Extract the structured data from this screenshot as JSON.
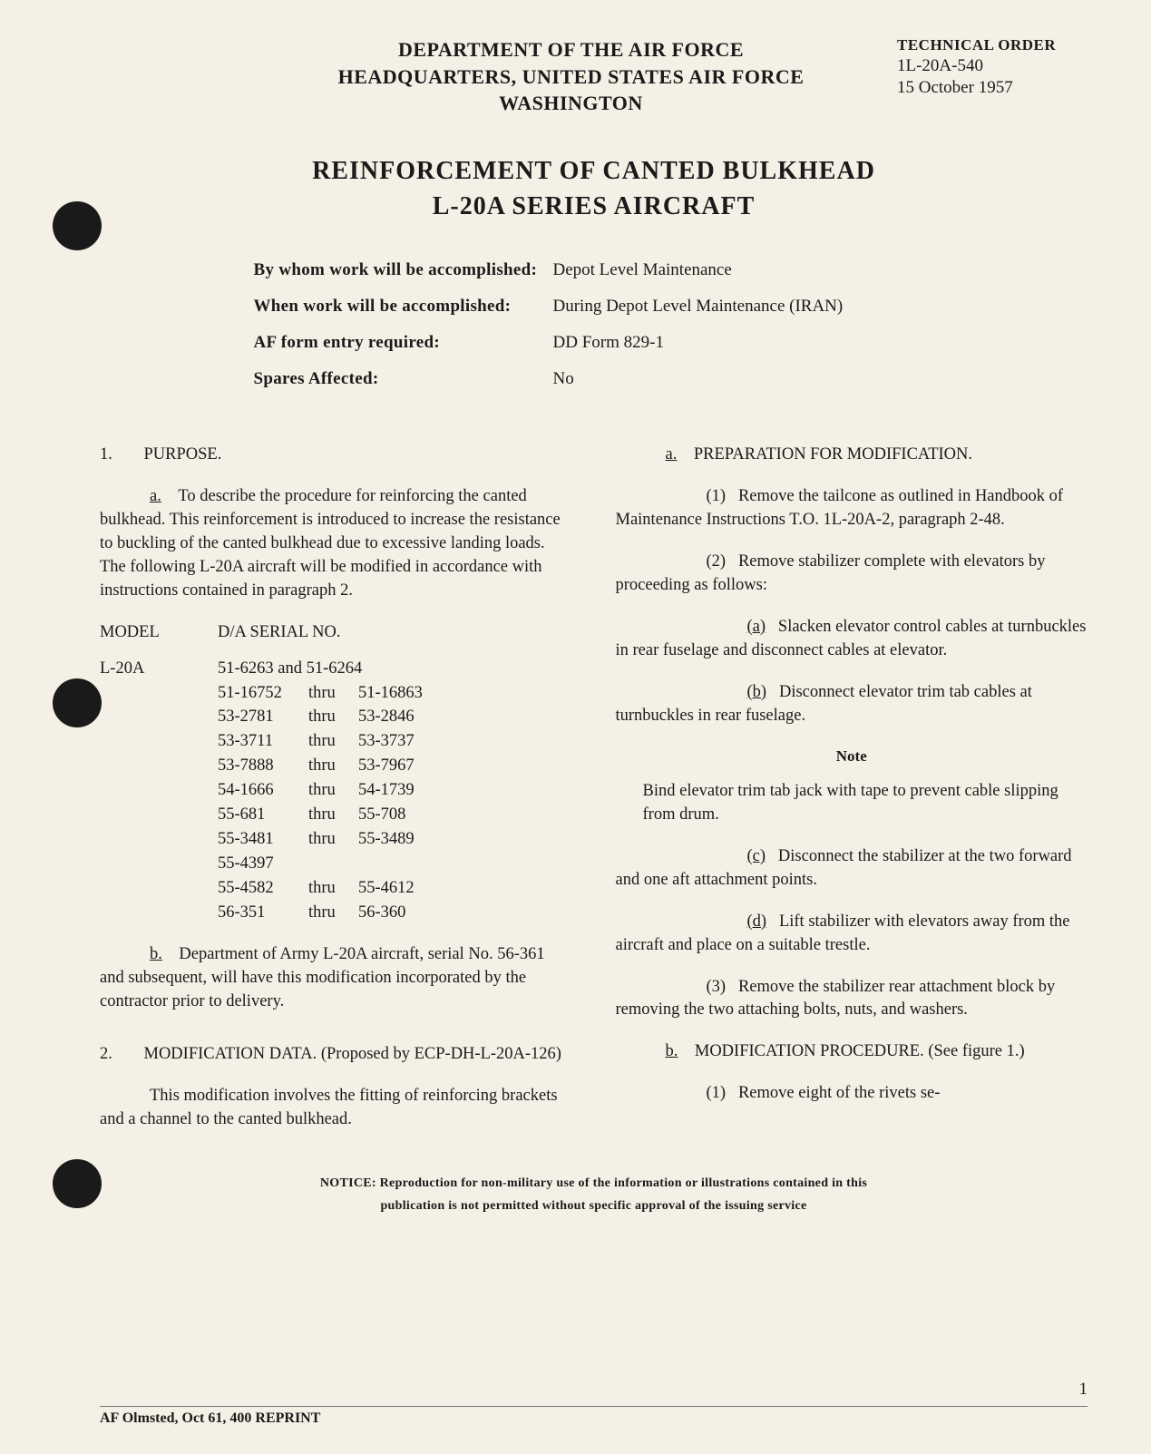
{
  "header": {
    "dept1": "DEPARTMENT OF THE AIR FORCE",
    "dept2": "HEADQUARTERS, UNITED STATES AIR FORCE",
    "dept3": "WASHINGTON",
    "order_label": "TECHNICAL ORDER",
    "order_num": "1L-20A-540",
    "date": "15 October 1957"
  },
  "title": {
    "line1": "REINFORCEMENT OF CANTED BULKHEAD",
    "line2": "L-20A SERIES AIRCRAFT"
  },
  "meta": {
    "by_whom_label": "By whom work will be accomplished:",
    "by_whom_value": "Depot Level Maintenance",
    "when_label": "When work will be accomplished:",
    "when_value": "During Depot Level Maintenance (IRAN)",
    "af_form_label": "AF form entry required:",
    "af_form_value": "DD Form 829-1",
    "spares_label": "Spares Affected:",
    "spares_value": "No"
  },
  "s1": {
    "heading": "PURPOSE.",
    "num": "1.",
    "a_letter": "a.",
    "a_text": "To describe the procedure for reinforcing the canted bulkhead. This reinforcement is introduced to increase the resistance to buckling of the canted bulkhead due to excessive landing loads. The following L-20A aircraft will be modified in accordance with instructions contained in paragraph 2.",
    "model_h": "MODEL",
    "serial_h": "D/A SERIAL NO.",
    "model": "L-20A",
    "serials": [
      {
        "text": "51-6263 and 51-6264"
      },
      {
        "from": "51-16752",
        "thru": "thru",
        "to": "51-16863"
      },
      {
        "from": "53-2781",
        "thru": "thru",
        "to": "53-2846"
      },
      {
        "from": "53-3711",
        "thru": "thru",
        "to": "53-3737"
      },
      {
        "from": "53-7888",
        "thru": "thru",
        "to": "53-7967"
      },
      {
        "from": "54-1666",
        "thru": "thru",
        "to": "54-1739"
      },
      {
        "from": "55-681",
        "thru": "thru",
        "to": "55-708"
      },
      {
        "from": "55-3481",
        "thru": "thru",
        "to": "55-3489"
      },
      {
        "text": "55-4397"
      },
      {
        "from": "55-4582",
        "thru": "thru",
        "to": "55-4612"
      },
      {
        "from": "56-351",
        "thru": "thru",
        "to": "56-360"
      }
    ],
    "b_letter": "b.",
    "b_text": "Department of Army L-20A aircraft, serial No. 56-361 and subsequent, will have this modification incorporated by the contractor prior to delivery."
  },
  "s2": {
    "num": "2.",
    "heading": "MODIFICATION DATA. (Proposed by ECP-DH-L-20A-126)",
    "intro": "This modification involves the fitting of reinforcing brackets and a channel to the canted bulkhead.",
    "a_letter": "a.",
    "a_heading": "PREPARATION FOR MODIFICATION.",
    "a1_num": "(1)",
    "a1_text": "Remove the tailcone as outlined in Handbook of Maintenance Instructions T.O. 1L-20A-2, paragraph 2-48.",
    "a2_num": "(2)",
    "a2_text": "Remove stabilizer complete with elevators by proceeding as follows:",
    "a2a_letter": "(a)",
    "a2a_text": "Slacken elevator control cables at turnbuckles in rear fuselage and disconnect cables at elevator.",
    "a2b_letter": "(b)",
    "a2b_text": "Disconnect elevator trim tab cables at turnbuckles in rear fuselage.",
    "note_label": "Note",
    "note_text": "Bind elevator trim tab jack with tape to prevent cable slipping from drum.",
    "a2c_letter": "(c)",
    "a2c_text": "Disconnect the stabilizer at the two forward and one aft attachment points.",
    "a2d_letter": "(d)",
    "a2d_text": "Lift stabilizer with elevators away from the aircraft and place on a suitable trestle.",
    "a3_num": "(3)",
    "a3_text": "Remove the stabilizer rear attachment block by removing the two attaching bolts, nuts, and washers.",
    "b_letter": "b.",
    "b_heading": "MODIFICATION PROCEDURE. (See figure 1.)",
    "b1_num": "(1)",
    "b1_text": "Remove eight of the rivets se-"
  },
  "notice": {
    "line1": "NOTICE: Reproduction for non-military use of the information or illustrations contained in this",
    "line2": "publication is not permitted without specific approval of the issuing service"
  },
  "page_num": "1",
  "footer": "AF Olmsted, Oct 61, 400 REPRINT"
}
